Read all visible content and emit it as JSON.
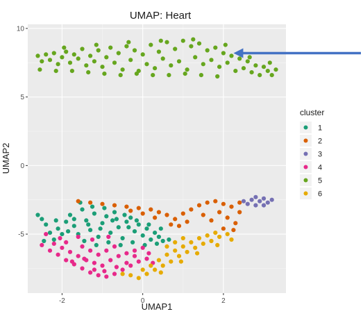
{
  "chart_data": {
    "type": "scatter",
    "title": "UMAP: Heart",
    "xlabel": "UMAP1",
    "ylabel": "UMAP2",
    "xlim": [
      -2.85,
      3.55
    ],
    "ylim": [
      -9.3,
      10.3
    ],
    "xticks": [
      -2,
      0,
      2
    ],
    "yticks": [
      -5,
      0,
      5,
      10
    ],
    "xtick_labels": [
      "-2",
      "0",
      "2"
    ],
    "ytick_labels": [
      "-5",
      "0",
      "5",
      "10"
    ],
    "grid": true,
    "legend": {
      "title": "cluster",
      "position": "right",
      "entries": [
        "1",
        "2",
        "3",
        "4",
        "5",
        "6"
      ]
    },
    "annotation": {
      "type": "arrow",
      "direction": "pointing-left",
      "target": {
        "x": 2.25,
        "y": 8.2
      },
      "color": "#4472c4"
    },
    "series": [
      {
        "name": "1",
        "color": "#1b9e77",
        "points": [
          [
            -2.6,
            -3.6
          ],
          [
            -2.5,
            -3.9
          ],
          [
            -2.4,
            -4.3
          ],
          [
            -2.3,
            -4.9
          ],
          [
            -2.2,
            -5.4
          ],
          [
            -2.1,
            -4.6
          ],
          [
            -2.0,
            -5.0
          ],
          [
            -1.9,
            -4.1
          ],
          [
            -1.8,
            -3.6
          ],
          [
            -1.7,
            -4.4
          ],
          [
            -1.6,
            -5.0
          ],
          [
            -1.5,
            -3.2
          ],
          [
            -1.4,
            -4.0
          ],
          [
            -1.3,
            -4.7
          ],
          [
            -1.2,
            -3.5
          ],
          [
            -1.1,
            -5.2
          ],
          [
            -1.0,
            -4.2
          ],
          [
            -0.9,
            -3.7
          ],
          [
            -0.8,
            -4.9
          ],
          [
            -0.7,
            -3.4
          ],
          [
            -0.6,
            -4.5
          ],
          [
            -0.5,
            -5.3
          ],
          [
            -0.4,
            -4.1
          ],
          [
            -0.3,
            -3.8
          ],
          [
            -0.2,
            -4.8
          ],
          [
            -0.1,
            -4.3
          ],
          [
            0.0,
            -5.1
          ],
          [
            0.1,
            -4.6
          ],
          [
            0.2,
            -5.4
          ],
          [
            0.3,
            -4.9
          ],
          [
            0.4,
            -5.2
          ],
          [
            0.5,
            -5.5
          ],
          [
            -1.55,
            -2.7
          ],
          [
            -1.25,
            -3.0
          ],
          [
            -0.95,
            -3.1
          ],
          [
            -0.65,
            -3.9
          ],
          [
            -0.35,
            -4.5
          ],
          [
            -1.85,
            -4.8
          ],
          [
            -2.15,
            -4.0
          ],
          [
            -1.45,
            -5.5
          ],
          [
            -1.15,
            -5.8
          ],
          [
            -0.85,
            -5.6
          ],
          [
            -0.55,
            -5.8
          ],
          [
            -0.25,
            -5.6
          ],
          [
            0.05,
            -5.8
          ],
          [
            0.35,
            -5.7
          ],
          [
            0.65,
            -5.4
          ],
          [
            -1.7,
            -3.9
          ],
          [
            -1.35,
            -4.3
          ],
          [
            -1.05,
            -4.6
          ],
          [
            -0.75,
            -4.0
          ],
          [
            -0.45,
            -3.6
          ],
          [
            -0.15,
            -4.0
          ],
          [
            0.15,
            -4.3
          ],
          [
            0.45,
            -4.6
          ],
          [
            -2.45,
            -5.5
          ]
        ]
      },
      {
        "name": "2",
        "color": "#d95f02",
        "points": [
          [
            -1.6,
            -2.6
          ],
          [
            -1.3,
            -2.7
          ],
          [
            -1.0,
            -2.8
          ],
          [
            -0.7,
            -2.9
          ],
          [
            -0.4,
            -3.0
          ],
          [
            -0.1,
            -3.1
          ],
          [
            0.2,
            -3.2
          ],
          [
            0.4,
            -3.4
          ],
          [
            0.6,
            -3.6
          ],
          [
            0.8,
            -3.9
          ],
          [
            1.0,
            -3.5
          ],
          [
            1.2,
            -3.2
          ],
          [
            1.4,
            -2.9
          ],
          [
            1.6,
            -2.7
          ],
          [
            1.8,
            -2.6
          ],
          [
            2.0,
            -2.8
          ],
          [
            2.2,
            -3.0
          ],
          [
            2.4,
            -2.7
          ],
          [
            1.9,
            -3.4
          ],
          [
            2.1,
            -3.8
          ],
          [
            2.3,
            -4.2
          ],
          [
            2.0,
            -4.6
          ],
          [
            1.7,
            -4.0
          ],
          [
            1.5,
            -3.6
          ],
          [
            1.1,
            -4.1
          ],
          [
            0.9,
            -4.4
          ],
          [
            0.7,
            -4.3
          ],
          [
            0.3,
            -3.8
          ],
          [
            0.0,
            -3.5
          ],
          [
            -0.3,
            -3.3
          ],
          [
            2.4,
            -3.4
          ],
          [
            2.25,
            -4.7
          ]
        ]
      },
      {
        "name": "3",
        "color": "#7570b3",
        "points": [
          [
            2.5,
            -2.6
          ],
          [
            2.6,
            -2.8
          ],
          [
            2.7,
            -2.5
          ],
          [
            2.8,
            -2.3
          ],
          [
            2.9,
            -2.6
          ],
          [
            3.0,
            -2.4
          ],
          [
            3.1,
            -2.7
          ],
          [
            3.2,
            -2.5
          ],
          [
            3.0,
            -2.9
          ],
          [
            2.8,
            -2.9
          ]
        ]
      },
      {
        "name": "4",
        "color": "#e7298a",
        "points": [
          [
            -2.5,
            -5.8
          ],
          [
            -2.3,
            -6.2
          ],
          [
            -2.1,
            -6.5
          ],
          [
            -1.9,
            -6.9
          ],
          [
            -1.7,
            -7.2
          ],
          [
            -1.5,
            -7.5
          ],
          [
            -1.3,
            -7.8
          ],
          [
            -1.1,
            -8.0
          ],
          [
            -0.9,
            -8.1
          ],
          [
            -0.7,
            -7.9
          ],
          [
            -0.5,
            -7.6
          ],
          [
            -0.3,
            -7.3
          ],
          [
            -0.1,
            -7.0
          ],
          [
            0.1,
            -6.8
          ],
          [
            -2.2,
            -5.7
          ],
          [
            -2.0,
            -6.0
          ],
          [
            -1.8,
            -6.3
          ],
          [
            -1.6,
            -6.6
          ],
          [
            -1.4,
            -6.9
          ],
          [
            -1.2,
            -7.1
          ],
          [
            -1.0,
            -7.3
          ],
          [
            -0.8,
            -6.9
          ],
          [
            -0.6,
            -6.6
          ],
          [
            -0.4,
            -6.4
          ],
          [
            -0.2,
            -6.2
          ],
          [
            0.0,
            -6.0
          ],
          [
            -1.5,
            -5.9
          ],
          [
            -1.3,
            -6.2
          ],
          [
            -1.1,
            -6.5
          ],
          [
            -0.9,
            -6.2
          ],
          [
            -0.7,
            -5.9
          ],
          [
            -1.6,
            -5.2
          ],
          [
            -1.9,
            -5.6
          ],
          [
            -2.4,
            -5.0
          ],
          [
            -1.2,
            -7.6
          ],
          [
            -0.95,
            -7.7
          ],
          [
            -0.65,
            -7.4
          ],
          [
            -0.4,
            -7.1
          ],
          [
            -0.2,
            -6.6
          ],
          [
            0.25,
            -7.1
          ],
          [
            -1.75,
            -7.0
          ],
          [
            -1.45,
            -6.8
          ],
          [
            -1.25,
            -5.4
          ],
          [
            -0.85,
            -5.2
          ],
          [
            0.15,
            -6.4
          ],
          [
            -2.05,
            -5.3
          ]
        ]
      },
      {
        "name": "5",
        "color": "#66a61e",
        "points": [
          [
            -2.6,
            8.0
          ],
          [
            -2.5,
            7.6
          ],
          [
            -2.4,
            8.1
          ],
          [
            -2.3,
            7.7
          ],
          [
            -2.2,
            8.2
          ],
          [
            -2.1,
            7.4
          ],
          [
            -2.0,
            7.9
          ],
          [
            -1.9,
            8.3
          ],
          [
            -1.8,
            7.5
          ],
          [
            -1.7,
            8.1
          ],
          [
            -1.6,
            7.8
          ],
          [
            -1.5,
            8.5
          ],
          [
            -1.4,
            7.3
          ],
          [
            -1.3,
            8.0
          ],
          [
            -1.2,
            7.6
          ],
          [
            -1.1,
            8.4
          ],
          [
            -1.0,
            7.2
          ],
          [
            -0.9,
            7.9
          ],
          [
            -0.8,
            8.6
          ],
          [
            -0.7,
            7.5
          ],
          [
            -0.6,
            8.2
          ],
          [
            -0.5,
            7.0
          ],
          [
            -0.4,
            8.7
          ],
          [
            -0.3,
            7.7
          ],
          [
            -0.2,
            8.4
          ],
          [
            -0.1,
            6.9
          ],
          [
            0.0,
            8.1
          ],
          [
            0.1,
            7.4
          ],
          [
            0.2,
            8.8
          ],
          [
            0.3,
            7.1
          ],
          [
            0.4,
            8.3
          ],
          [
            0.5,
            7.8
          ],
          [
            0.6,
            9.0
          ],
          [
            0.7,
            7.3
          ],
          [
            0.8,
            8.5
          ],
          [
            0.9,
            7.6
          ],
          [
            1.0,
            9.1
          ],
          [
            1.1,
            7.0
          ],
          [
            1.2,
            8.7
          ],
          [
            1.3,
            7.9
          ],
          [
            1.4,
            8.9
          ],
          [
            1.5,
            7.4
          ],
          [
            1.6,
            8.4
          ],
          [
            1.7,
            7.7
          ],
          [
            1.8,
            8.6
          ],
          [
            1.9,
            7.2
          ],
          [
            2.0,
            8.2
          ],
          [
            2.1,
            7.5
          ],
          [
            2.2,
            8.0
          ],
          [
            2.3,
            6.9
          ],
          [
            2.4,
            7.8
          ],
          [
            2.5,
            7.1
          ],
          [
            2.6,
            7.6
          ],
          [
            2.7,
            6.8
          ],
          [
            2.8,
            7.3
          ],
          [
            2.9,
            6.6
          ],
          [
            3.0,
            7.2
          ],
          [
            3.1,
            6.9
          ],
          [
            3.2,
            6.6
          ],
          [
            3.3,
            7.0
          ],
          [
            -2.55,
            7.0
          ],
          [
            -2.15,
            6.9
          ],
          [
            -1.75,
            6.9
          ],
          [
            -1.35,
            6.8
          ],
          [
            -0.95,
            6.7
          ],
          [
            -0.55,
            6.6
          ],
          [
            -0.15,
            6.7
          ],
          [
            0.25,
            6.6
          ],
          [
            0.65,
            6.6
          ],
          [
            1.05,
            6.7
          ],
          [
            1.45,
            6.6
          ],
          [
            1.85,
            6.5
          ],
          [
            -1.95,
            8.6
          ],
          [
            -1.15,
            8.8
          ],
          [
            -0.35,
            9.0
          ],
          [
            0.45,
            9.1
          ],
          [
            1.25,
            9.2
          ],
          [
            2.05,
            8.8
          ],
          [
            2.65,
            7.9
          ],
          [
            3.15,
            7.5
          ]
        ]
      },
      {
        "name": "6",
        "color": "#e6ab02",
        "points": [
          [
            -0.3,
            -8.0
          ],
          [
            -0.1,
            -8.2
          ],
          [
            0.1,
            -7.9
          ],
          [
            0.3,
            -7.6
          ],
          [
            0.5,
            -7.3
          ],
          [
            0.7,
            -7.0
          ],
          [
            0.9,
            -6.6
          ],
          [
            1.1,
            -6.3
          ],
          [
            1.3,
            -6.0
          ],
          [
            1.5,
            -5.7
          ],
          [
            1.7,
            -5.5
          ],
          [
            1.9,
            -5.2
          ],
          [
            2.1,
            -5.0
          ],
          [
            0.2,
            -7.3
          ],
          [
            0.4,
            -6.9
          ],
          [
            0.6,
            -6.5
          ],
          [
            0.8,
            -6.2
          ],
          [
            1.0,
            -5.9
          ],
          [
            1.2,
            -5.6
          ],
          [
            1.4,
            -5.3
          ],
          [
            1.6,
            -5.1
          ],
          [
            1.8,
            -4.9
          ],
          [
            0.6,
            -5.9
          ],
          [
            0.8,
            -5.6
          ],
          [
            1.0,
            -5.3
          ],
          [
            -0.5,
            -7.9
          ],
          [
            0.0,
            -7.6
          ],
          [
            0.45,
            -7.8
          ],
          [
            0.95,
            -7.0
          ],
          [
            1.35,
            -6.4
          ],
          [
            2.2,
            -5.4
          ],
          [
            1.85,
            -5.8
          ]
        ]
      }
    ]
  }
}
